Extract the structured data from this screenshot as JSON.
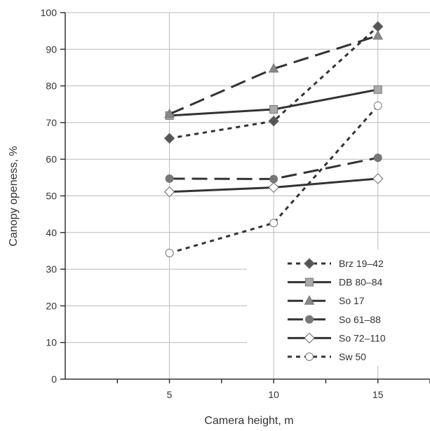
{
  "chart_data": {
    "type": "line",
    "xlabel": "Camera height, m",
    "ylabel": "Canopy openess, %",
    "x": [
      5,
      10,
      15
    ],
    "x_ticks": [
      "5",
      "10",
      "15"
    ],
    "xlim": [
      0,
      17.5
    ],
    "ylim": [
      0,
      100
    ],
    "y_ticks": [
      "0",
      "10",
      "20",
      "30",
      "40",
      "50",
      "60",
      "70",
      "80",
      "90",
      "100"
    ],
    "grid": true,
    "legend_position": "bottom-right",
    "series": [
      {
        "name": "Brz 19–42",
        "values": [
          65.7,
          70.4,
          96.2
        ],
        "line": "dotted",
        "marker": "diamond",
        "marker_fill": "#555555",
        "color": "#333333"
      },
      {
        "name": "DB 80–84",
        "values": [
          71.9,
          73.6,
          79.0
        ],
        "line": "solid",
        "marker": "square",
        "marker_fill": "#aaaaaa",
        "color": "#333333"
      },
      {
        "name": "So 17",
        "values": [
          72.3,
          84.7,
          93.7
        ],
        "line": "dashed",
        "marker": "triangle",
        "marker_fill": "#888888",
        "color": "#333333"
      },
      {
        "name": "So 61–88",
        "values": [
          54.7,
          54.6,
          60.4
        ],
        "line": "dashed",
        "marker": "circle",
        "marker_fill": "#777777",
        "color": "#333333"
      },
      {
        "name": "So 72–110",
        "values": [
          51.1,
          52.3,
          54.7
        ],
        "line": "solid",
        "marker": "diamond",
        "marker_fill": "#ffffff",
        "color": "#333333"
      },
      {
        "name": "Sw 50",
        "values": [
          34.4,
          42.6,
          74.6
        ],
        "line": "dotted",
        "marker": "circle",
        "marker_fill": "#ffffff",
        "color": "#333333"
      }
    ]
  }
}
